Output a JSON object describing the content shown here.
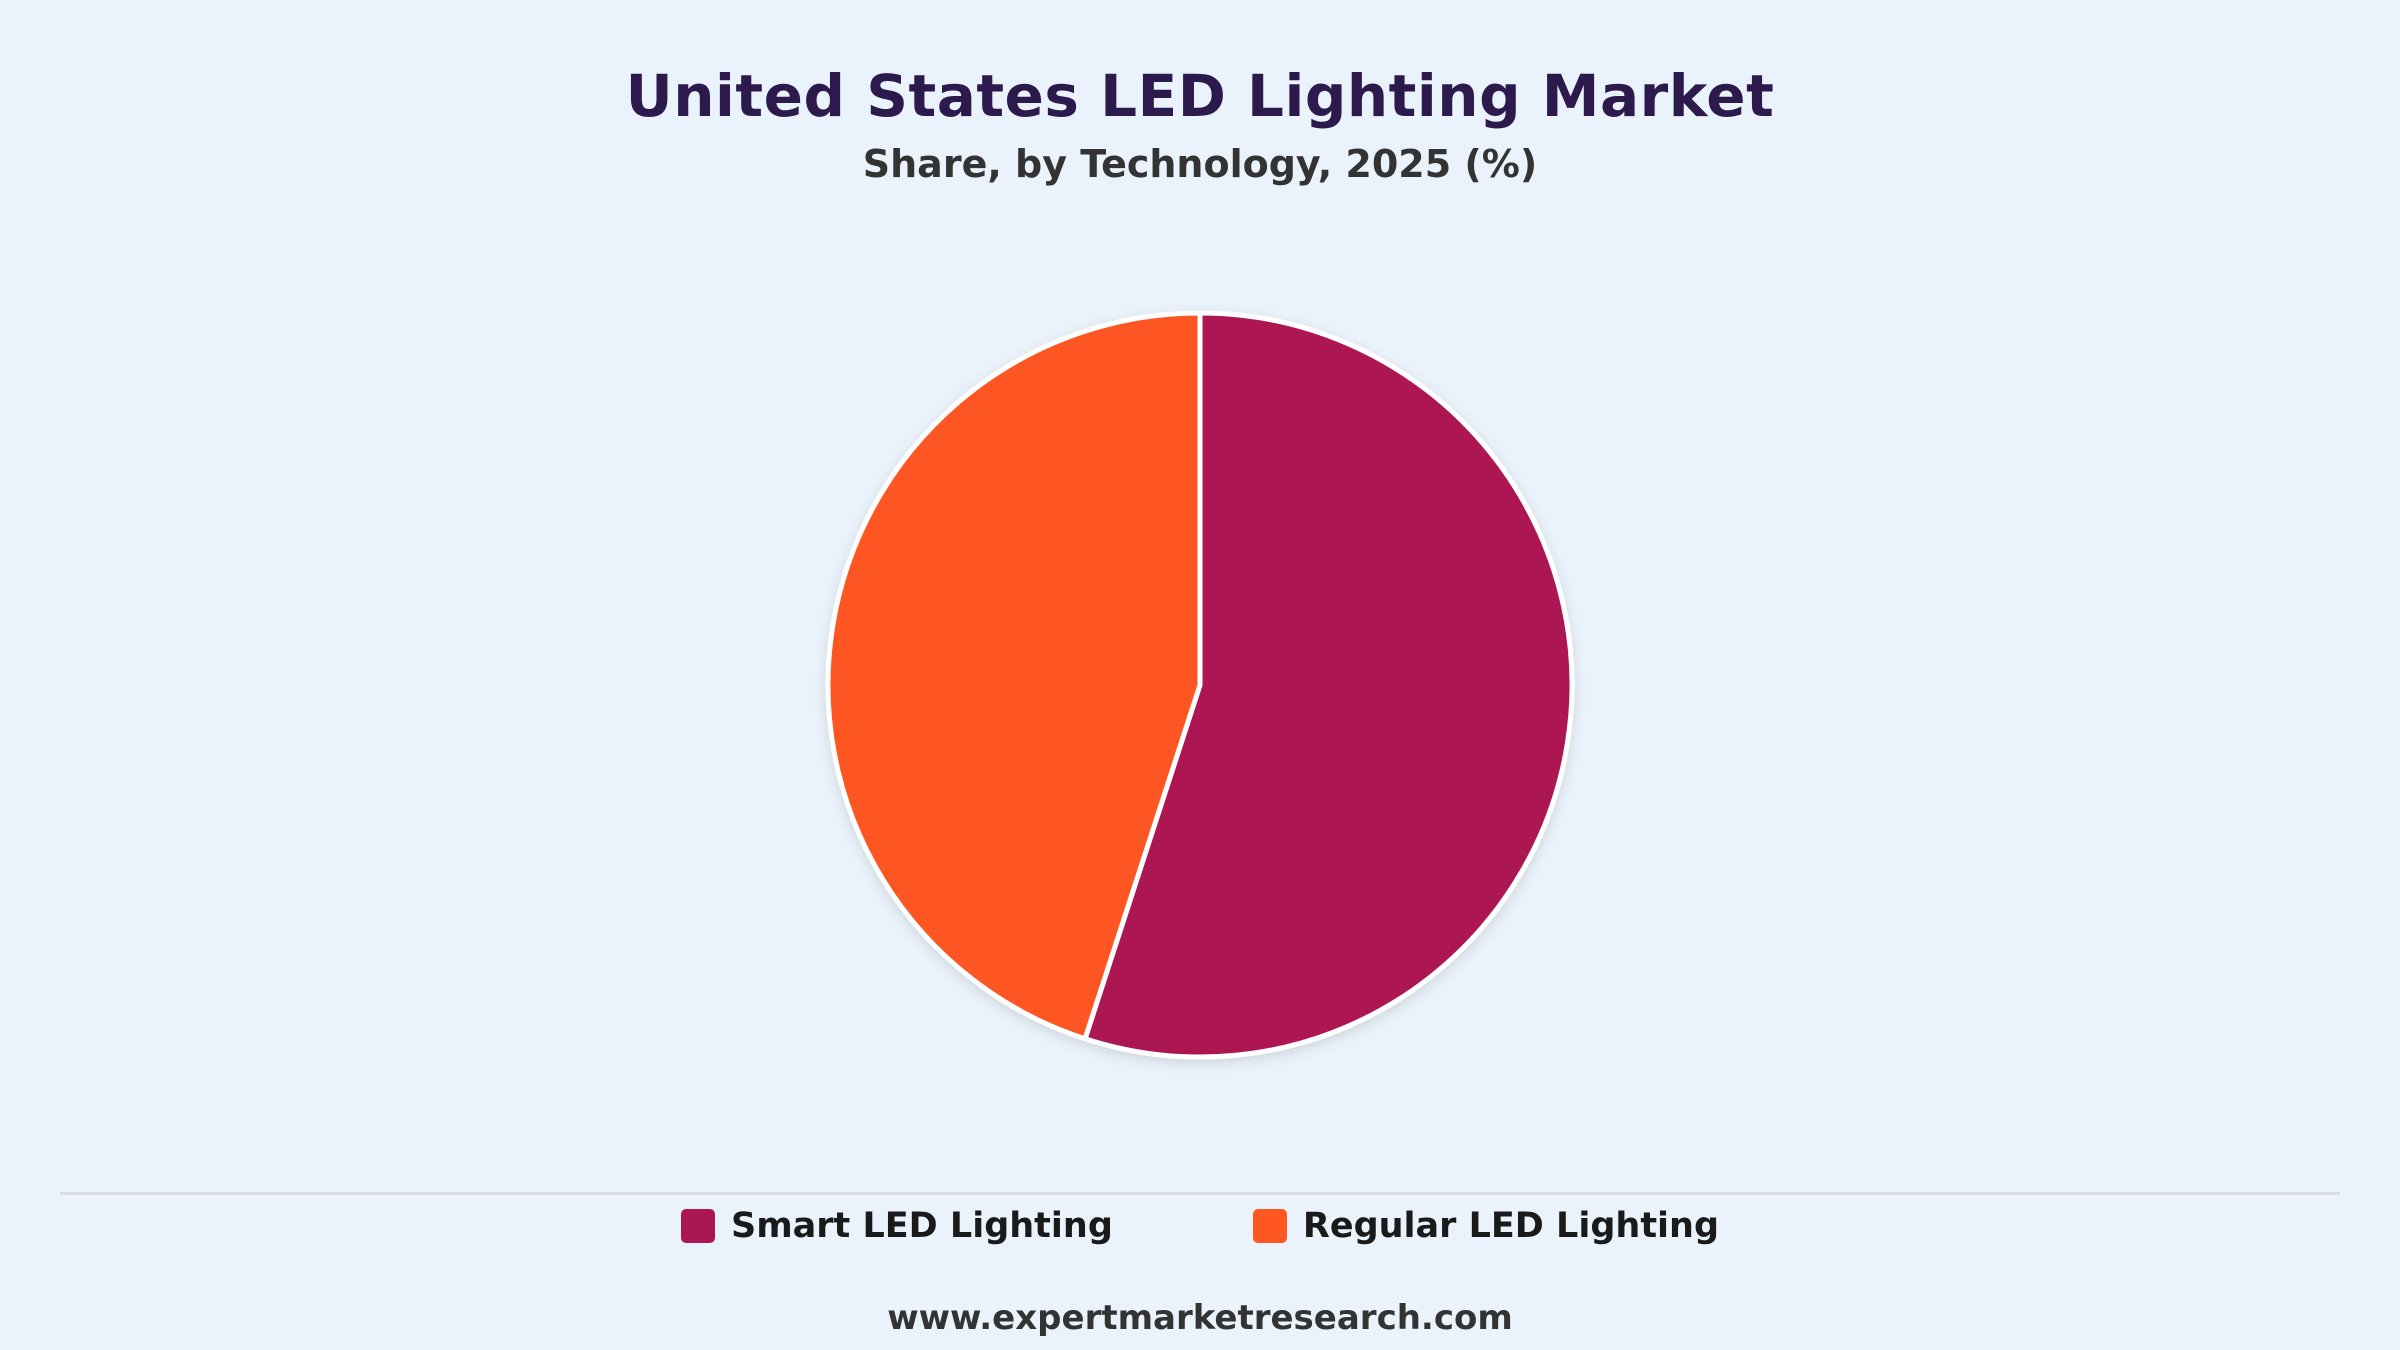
{
  "header": {
    "title": "United States LED Lighting Market",
    "subtitle": "Share, by Technology, 2025 (%)"
  },
  "legend": {
    "items": [
      {
        "label": "Smart LED Lighting",
        "color": "#ab1753"
      },
      {
        "label": "Regular LED Lighting",
        "color": "#fe5722"
      }
    ]
  },
  "footer": {
    "source": "www.expertmarketresearch.com"
  },
  "chart_data": {
    "type": "pie",
    "title": "United States LED Lighting Market",
    "subtitle": "Share, by Technology, 2025 (%)",
    "categories": [
      "Smart LED Lighting",
      "Regular LED Lighting"
    ],
    "values": [
      55,
      45
    ],
    "colors": [
      "#ab1753",
      "#fe5722"
    ],
    "legend_position": "bottom",
    "start_angle": "top",
    "direction": "clockwise"
  }
}
